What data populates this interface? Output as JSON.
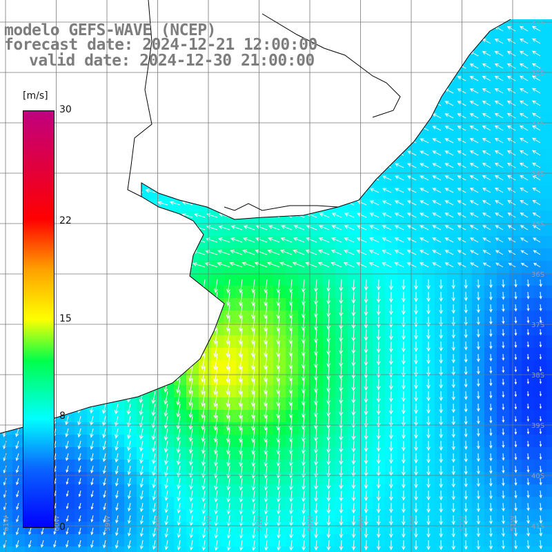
{
  "titles": {
    "line1": "modelo GEFS-WAVE (NCEP)",
    "line2": "forecast date: 2024-12-21 12:00:00",
    "line3": "valid date: 2024-12-30 21:00:00"
  },
  "colorbar": {
    "units": "[m/s]",
    "min": 0,
    "max": 30,
    "ticks": [
      "30",
      "22",
      "15",
      "8",
      "0"
    ],
    "tick_values": [
      30,
      22,
      15,
      8,
      0
    ],
    "colors": [
      "#0000ff",
      "#00aaff",
      "#00ffff",
      "#00ff00",
      "#ffff00",
      "#ff7f00",
      "#ff0000",
      "#c0007f"
    ]
  },
  "lat_labels": [
    "31S",
    "32S",
    "33S",
    "34S",
    "35S",
    "36S",
    "37S",
    "38S",
    "39S",
    "40S",
    "41S"
  ],
  "lon_labels": [
    "61W",
    "60W",
    "59W",
    "58W",
    "57W",
    "56W",
    "55W",
    "54W",
    "53W",
    "52W",
    "51W"
  ]
}
